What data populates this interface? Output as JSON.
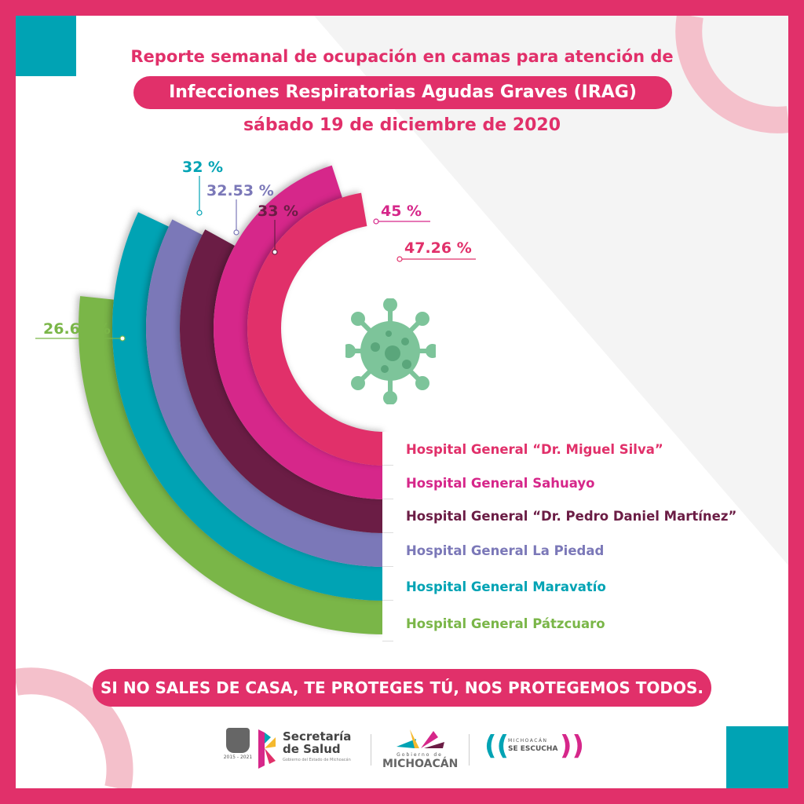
{
  "header": {
    "line1": "Reporte semanal de ocupación en camas para atención de",
    "line2": "Infecciones Respiratorias Agudas Graves (IRAG)",
    "date": "sábado 19 de diciembre de 2020"
  },
  "chart_data": {
    "type": "radial-bar",
    "unit": "%",
    "categories": [
      "Hospital General “Dr. Miguel Silva”",
      "Hospital General Sahuayo",
      "Hospital General “Dr. Pedro Daniel Martínez”",
      "Hospital General La Piedad",
      "Hospital General Maravatío",
      "Hospital General Pátzcuaro"
    ],
    "values": [
      47.26,
      45,
      33,
      32.53,
      32,
      26.67
    ],
    "labels": [
      "47.26 %",
      "45 %",
      "33 %",
      "32.53 %",
      "32 %",
      "26.67 %"
    ],
    "colors": [
      "#e1306a",
      "#d6278a",
      "#6b1d45",
      "#7b78b8",
      "#00a3b4",
      "#7ab648"
    ]
  },
  "footer": {
    "slogan": "SI NO SALES DE CASA, TE PROTEGES TÚ, NOS PROTEGEMOS TODOS.",
    "logos": {
      "salud_line1": "Secretaría",
      "salud_line2": "de Salud",
      "salud_sub": "Gobierno del Estado de Michoacán",
      "escudo_years": "2015 - 2021",
      "gob_small": "Gobierno de",
      "gob_big": "MICHOACÁN",
      "escucha1": "MICHOACÁN",
      "escucha2": "SE ESCUCHA"
    }
  },
  "virus_icon": "virus-icon"
}
